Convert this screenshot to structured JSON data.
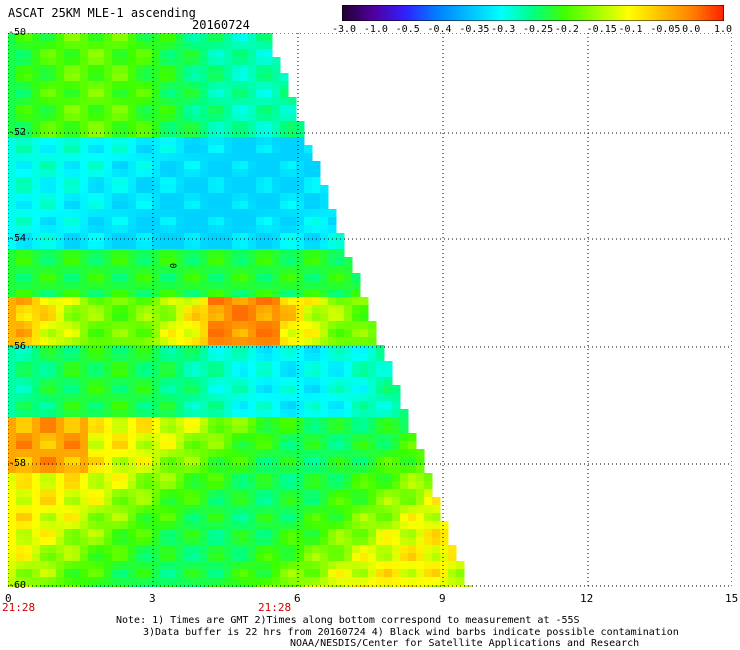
{
  "header": {
    "title": "ASCAT 25KM MLE-1 ascending",
    "date": "20160724"
  },
  "colorbar": {
    "labels": [
      "-3.0",
      "-1.0",
      "-0.5",
      "-0.4",
      "-0.35",
      "-0.3",
      "-0.25",
      "-0.2",
      "-0.15",
      "-0.1",
      "-0.05",
      "0.0",
      "1.0"
    ],
    "colors": [
      "#200030",
      "#5000a0",
      "#3020ff",
      "#0080ff",
      "#00c0ff",
      "#00ffff",
      "#00ff80",
      "#40ff00",
      "#a0ff00",
      "#ffff00",
      "#ffc000",
      "#ff8000",
      "#ff2000"
    ]
  },
  "map": {
    "y_axis_labels": [
      "-50",
      "-52",
      "-54",
      "-56",
      "-58",
      "-60"
    ],
    "x_axis_labels": [
      "0",
      "3",
      "6",
      "9",
      "12",
      "15"
    ],
    "time_labels": [
      "21:28",
      "21:28"
    ],
    "contour_label": "0",
    "lat_range": [
      -60,
      -50
    ],
    "lon_range": [
      0,
      15
    ]
  },
  "notes": {
    "line1": "Note: 1) Times are GMT 2)Times along bottom correspond to measurement at -55S",
    "line2": "3)Data buffer is 22 hrs from 20160724 4) Black wind barbs indicate possible contamination",
    "line3": "NOAA/NESDIS/Center for Satellite Applications and Research"
  }
}
